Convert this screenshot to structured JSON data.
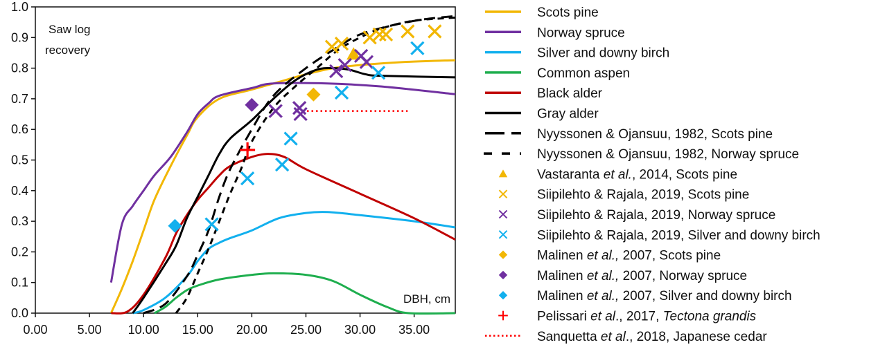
{
  "chart_data": {
    "type": "line",
    "xlabel": "DBH, cm",
    "ylabel": "Saw log recovery",
    "ylabel_lines": [
      "Saw log",
      "recovery"
    ],
    "xlim": [
      0,
      38.8
    ],
    "ylim": [
      0,
      1.0
    ],
    "xticks": [
      "0.00",
      "5.00",
      "10.00",
      "15.00",
      "20.00",
      "25.00",
      "30.00",
      "35.00"
    ],
    "xtick_values": [
      0,
      5,
      10,
      15,
      20,
      25,
      30,
      35
    ],
    "yticks": [
      "0.0",
      "0.1",
      "0.2",
      "0.3",
      "0.4",
      "0.5",
      "0.6",
      "0.7",
      "0.8",
      "0.9",
      "1.0"
    ],
    "ytick_values": [
      0,
      0.1,
      0.2,
      0.3,
      0.4,
      0.5,
      0.6,
      0.7,
      0.8,
      0.9,
      1.0
    ],
    "grid": false,
    "legend_position": "right",
    "series": [
      {
        "name": "Scots pine",
        "kind": "line",
        "color": "#F2B705",
        "dash": "solid",
        "x": [
          7,
          8,
          9,
          10,
          11,
          12.5,
          14,
          15,
          17,
          20,
          22.5,
          25,
          27.5,
          30,
          34,
          38.8
        ],
        "y": [
          0,
          0.08,
          0.17,
          0.27,
          0.37,
          0.48,
          0.58,
          0.64,
          0.7,
          0.73,
          0.755,
          0.78,
          0.8,
          0.81,
          0.82,
          0.826
        ]
      },
      {
        "name": "Norway spruce",
        "kind": "line",
        "color": "#7030A0",
        "dash": "solid",
        "x": [
          7,
          8,
          9,
          10,
          11,
          12.5,
          14,
          15,
          16,
          17,
          20,
          22,
          27,
          32,
          38.8
        ],
        "y": [
          0.1,
          0.29,
          0.35,
          0.4,
          0.45,
          0.51,
          0.59,
          0.65,
          0.685,
          0.71,
          0.735,
          0.75,
          0.75,
          0.74,
          0.715
        ]
      },
      {
        "name": "Silver and downy birch",
        "kind": "line",
        "color": "#12B0EE",
        "dash": "solid",
        "x": [
          9,
          10,
          12,
          14,
          15,
          16,
          17,
          18,
          20,
          22.5,
          25,
          27,
          30,
          35,
          38.8
        ],
        "y": [
          0,
          0.01,
          0.05,
          0.12,
          0.17,
          0.21,
          0.23,
          0.245,
          0.27,
          0.31,
          0.327,
          0.33,
          0.32,
          0.3,
          0.28
        ]
      },
      {
        "name": "Common aspen",
        "kind": "line",
        "color": "#1EAE4E",
        "dash": "solid",
        "x": [
          11,
          12,
          13,
          14,
          15,
          17,
          20,
          22,
          25,
          27.5,
          30,
          32.5,
          34.5,
          38.8
        ],
        "y": [
          0,
          0.02,
          0.05,
          0.075,
          0.09,
          0.11,
          0.125,
          0.13,
          0.125,
          0.105,
          0.06,
          0.02,
          0,
          0
        ]
      },
      {
        "name": "Black alder",
        "kind": "line",
        "color": "#C00000",
        "dash": "solid",
        "x": [
          7,
          8.5,
          10,
          12,
          13,
          14,
          15,
          16,
          17,
          18,
          20,
          21.5,
          23,
          25,
          30,
          35,
          38.8
        ],
        "y": [
          0,
          0.005,
          0.06,
          0.18,
          0.26,
          0.32,
          0.37,
          0.41,
          0.45,
          0.48,
          0.51,
          0.52,
          0.51,
          0.47,
          0.39,
          0.31,
          0.24
        ]
      },
      {
        "name": "Gray alder",
        "kind": "line",
        "color": "#000000",
        "dash": "solid",
        "x": [
          9,
          10,
          12,
          13,
          14,
          15,
          16,
          17,
          18,
          20,
          22,
          24,
          26,
          27.5,
          29,
          30.5,
          32,
          38.8
        ],
        "y": [
          0,
          0.05,
          0.16,
          0.22,
          0.31,
          0.38,
          0.45,
          0.52,
          0.57,
          0.63,
          0.7,
          0.76,
          0.795,
          0.8,
          0.795,
          0.78,
          0.775,
          0.77
        ]
      },
      {
        "name": "Nyyssonen & Ojansuu, 1982, Scots pine",
        "kind": "line",
        "color": "#000000",
        "dash": "long",
        "x": [
          10,
          12,
          14,
          15,
          16,
          17,
          18,
          20,
          22,
          25,
          28,
          30,
          33,
          36,
          38.8
        ],
        "y": [
          0,
          0.03,
          0.12,
          0.19,
          0.27,
          0.38,
          0.47,
          0.6,
          0.71,
          0.8,
          0.87,
          0.91,
          0.94,
          0.96,
          0.97
        ]
      },
      {
        "name": "Nyyssonen & Ojansuu, 1982, Norway spruce",
        "kind": "line",
        "color": "#000000",
        "dash": "short",
        "x": [
          13,
          14,
          15,
          16,
          17,
          18,
          19,
          20,
          22,
          24,
          26,
          28,
          30,
          32,
          35,
          38.8
        ],
        "y": [
          0,
          0.05,
          0.13,
          0.21,
          0.3,
          0.39,
          0.47,
          0.56,
          0.67,
          0.74,
          0.8,
          0.86,
          0.9,
          0.93,
          0.955,
          0.965
        ]
      },
      {
        "name": "Vastaranta et al., 2014, Scots pine",
        "kind": "triangle",
        "color": "#F2B705",
        "x": [
          29.4
        ],
        "y": [
          0.846
        ]
      },
      {
        "name": "Siipilehto & Rajala, 2019, Scots pine",
        "kind": "x",
        "color": "#F2B705",
        "x": [
          27.4,
          28.3,
          30.9,
          31.8,
          32.4,
          34.4,
          36.9
        ],
        "y": [
          0.87,
          0.88,
          0.9,
          0.91,
          0.91,
          0.92,
          0.92
        ]
      },
      {
        "name": "Siipilehto & Rajala, 2019, Norway spruce",
        "kind": "x",
        "color": "#7030A0",
        "x": [
          22.2,
          24.4,
          24.5,
          27.8,
          28.6,
          30.1,
          30.6
        ],
        "y": [
          0.66,
          0.67,
          0.65,
          0.79,
          0.81,
          0.84,
          0.82
        ]
      },
      {
        "name": "Siipilehto & Rajala, 2019, Silver and downy birch",
        "kind": "x",
        "color": "#12B0EE",
        "x": [
          16.3,
          19.6,
          22.8,
          23.6,
          28.3,
          31.7,
          35.3
        ],
        "y": [
          0.29,
          0.44,
          0.485,
          0.57,
          0.72,
          0.785,
          0.865
        ]
      },
      {
        "name": "Malinen et al., 2007, Scots pine",
        "kind": "diamond",
        "color": "#F2B705",
        "x": [
          25.7
        ],
        "y": [
          0.714
        ]
      },
      {
        "name": "Malinen et al., 2007, Norway spruce",
        "kind": "diamond",
        "color": "#7030A0",
        "x": [
          20.0
        ],
        "y": [
          0.68
        ]
      },
      {
        "name": "Malinen et al., 2007, Silver and downy birch",
        "kind": "diamond",
        "color": "#12B0EE",
        "x": [
          12.9
        ],
        "y": [
          0.285
        ]
      },
      {
        "name": "Pelissari et al., 2017, Tectona grandis",
        "kind": "plus",
        "color": "#FF0000",
        "x": [
          19.6
        ],
        "y": [
          0.533
        ]
      },
      {
        "name": "Sanquetta et al., 2018, Japanese cedar",
        "kind": "line",
        "color": "#FF0000",
        "dash": "dotted",
        "x": [
          25.1,
          34.4
        ],
        "y": [
          0.66,
          0.66
        ]
      }
    ],
    "legend": [
      [
        {
          "t": "Scots pine"
        }
      ],
      [
        {
          "t": "Norway spruce"
        }
      ],
      [
        {
          "t": "Silver and downy birch"
        }
      ],
      [
        {
          "t": "Common aspen"
        }
      ],
      [
        {
          "t": "Black alder"
        }
      ],
      [
        {
          "t": "Gray alder"
        }
      ],
      [
        {
          "t": "Nyyssonen & Ojansuu, 1982, Scots pine"
        }
      ],
      [
        {
          "t": "Nyyssonen & Ojansuu, 1982, Norway spruce"
        }
      ],
      [
        {
          "t": "Vastaranta "
        },
        {
          "t": "et al.",
          "i": true
        },
        {
          "t": ", 2014, Scots pine"
        }
      ],
      [
        {
          "t": "Siipilehto & Rajala, 2019, Scots pine"
        }
      ],
      [
        {
          "t": "Siipilehto & Rajala, 2019, Norway spruce"
        }
      ],
      [
        {
          "t": "Siipilehto & Rajala, 2019, Silver and downy birch"
        }
      ],
      [
        {
          "t": "Malinen "
        },
        {
          "t": "et al.,",
          "i": true
        },
        {
          "t": " 2007, Scots pine"
        }
      ],
      [
        {
          "t": "Malinen "
        },
        {
          "t": "et al.,",
          "i": true
        },
        {
          "t": " 2007, Norway spruce"
        }
      ],
      [
        {
          "t": "Malinen "
        },
        {
          "t": "et al.,",
          "i": true
        },
        {
          "t": " 2007, Silver and downy birch"
        }
      ],
      [
        {
          "t": "Pelissari "
        },
        {
          "t": "et al",
          "i": true
        },
        {
          "t": "., 2017, "
        },
        {
          "t": "Tectona grandis",
          "i": true
        }
      ],
      [
        {
          "t": "Sanquetta "
        },
        {
          "t": "et al",
          "i": true
        },
        {
          "t": "., 2018, Japanese cedar"
        }
      ]
    ]
  }
}
